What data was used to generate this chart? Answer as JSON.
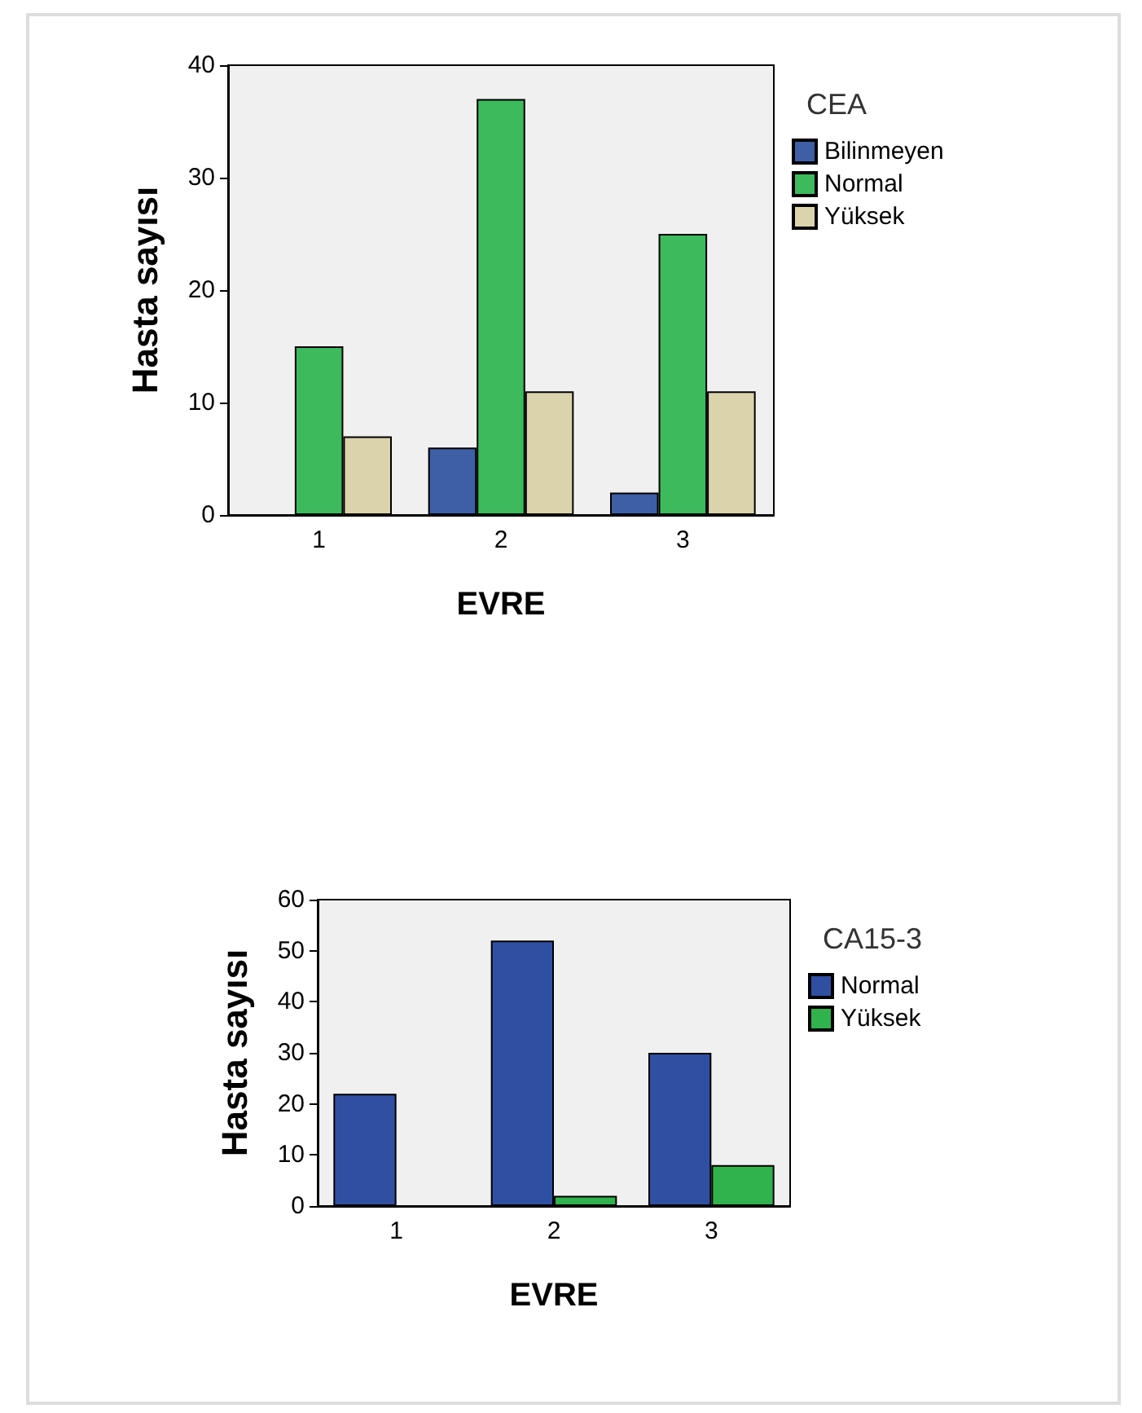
{
  "chart_data": [
    {
      "type": "bar",
      "xlabel": "EVRE",
      "ylabel": "Hasta sayısı",
      "legend_title": "CEA",
      "categories": [
        "1",
        "2",
        "3"
      ],
      "series": [
        {
          "name": "Bilinmeyen",
          "color": "#3e5ea6",
          "values": [
            null,
            6,
            2
          ]
        },
        {
          "name": "Normal",
          "color": "#3dba5c",
          "values": [
            15,
            37,
            25
          ]
        },
        {
          "name": "Yüksek",
          "color": "#dbd3ac",
          "values": [
            7,
            11,
            11
          ]
        }
      ],
      "ylim": [
        0,
        40
      ],
      "yticks": [
        0,
        10,
        20,
        30,
        40
      ],
      "grid": false,
      "legend": "top right"
    },
    {
      "type": "bar",
      "xlabel": "EVRE",
      "ylabel": "Hasta sayısı",
      "legend_title": "CA15-3",
      "categories": [
        "1",
        "2",
        "3"
      ],
      "series": [
        {
          "name": "Normal",
          "color": "#2f4fa3",
          "values": [
            22,
            52,
            30
          ]
        },
        {
          "name": "Yüksek",
          "color": "#30b24c",
          "values": [
            null,
            2,
            8
          ]
        }
      ],
      "ylim": [
        0,
        60
      ],
      "yticks": [
        0,
        10,
        20,
        30,
        40,
        50,
        60
      ],
      "grid": false,
      "legend": "top right"
    }
  ]
}
